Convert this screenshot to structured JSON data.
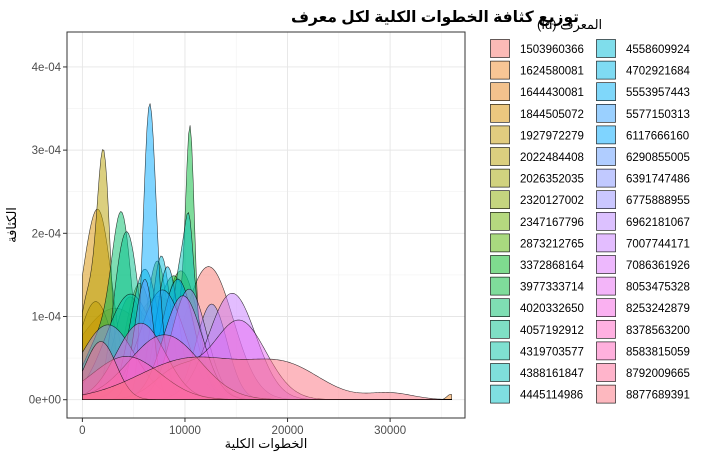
{
  "chart_data": {
    "type": "area",
    "subtype": "density",
    "title": "توزيع كثافة الخطوات الكلية لكل معرف",
    "xlabel": "الخطوات الكلية",
    "ylabel": "الكثافة",
    "xlim": [
      -1500,
      37300
    ],
    "ylim": [
      -2.2e-05,
      0.000442
    ],
    "x_ticks": [
      0,
      10000,
      20000,
      30000
    ],
    "x_tick_labels": [
      "0",
      "10000",
      "20000",
      "30000"
    ],
    "y_ticks": [
      0,
      0.0001,
      0.0002,
      0.0003,
      0.0004
    ],
    "y_tick_labels": [
      "0e+00",
      "1e-04",
      "2e-04",
      "3e-04",
      "4e-04"
    ],
    "grid": true,
    "legend_title": "المعرف (Id)",
    "legend_position": "right",
    "series": [
      {
        "name": "1503960366",
        "color": "#F8766D",
        "components": [
          [
            12300,
            2400,
            0.00016
          ]
        ]
      },
      {
        "name": "1624580081",
        "color": "#F28E2B",
        "components": [
          [
            3200,
            3800,
            0.00011
          ],
          [
            35900,
            350,
            6.5e-06
          ]
        ]
      },
      {
        "name": "1644430081",
        "color": "#E7861B",
        "components": [
          [
            7400,
            2900,
            0.000124
          ]
        ]
      },
      {
        "name": "1844505072",
        "color": "#D89000",
        "components": [
          [
            1800,
            1300,
            0.000182
          ],
          [
            200,
            1400,
            8e-05
          ]
        ]
      },
      {
        "name": "1927972279",
        "color": "#C49A00",
        "components": [
          [
            1300,
            1700,
            0.000118
          ]
        ]
      },
      {
        "name": "2022484408",
        "color": "#B79F00",
        "components": [
          [
            2100,
            650,
            0.000275
          ],
          [
            500,
            900,
            0.00012
          ]
        ]
      },
      {
        "name": "2026352035",
        "color": "#A3A500",
        "components": [
          [
            5600,
            1400,
            0.00014
          ]
        ]
      },
      {
        "name": "2320127002",
        "color": "#8CAB00",
        "components": [
          [
            4600,
            1500,
            0.000123
          ],
          [
            7300,
            900,
            6e-05
          ]
        ]
      },
      {
        "name": "2347167796",
        "color": "#6BB100",
        "components": [
          [
            9600,
            1800,
            0.000155
          ]
        ]
      },
      {
        "name": "2873212765",
        "color": "#53B400",
        "components": [
          [
            7300,
            1100,
            0.000167
          ]
        ]
      },
      {
        "name": "3372868164",
        "color": "#00B81F",
        "components": [
          [
            8900,
            1900,
            0.000149
          ]
        ]
      },
      {
        "name": "3977333714",
        "color": "#00BA38",
        "components": [
          [
            10500,
            400,
            0.000225
          ],
          [
            9900,
            1400,
            0.000115
          ]
        ]
      },
      {
        "name": "4020332650",
        "color": "#00BE67",
        "components": [
          [
            3900,
            950,
            0.000176
          ],
          [
            2100,
            1800,
            8e-05
          ]
        ]
      },
      {
        "name": "4057192912",
        "color": "#00C08B",
        "components": [
          [
            4600,
            1100,
            0.000172
          ],
          [
            3400,
            900,
            6e-05
          ]
        ]
      },
      {
        "name": "4319703577",
        "color": "#00C1A3",
        "components": [
          [
            4700,
            2400,
            0.000127
          ]
        ]
      },
      {
        "name": "4388161847",
        "color": "#00C0B8",
        "components": [
          [
            10000,
            1200,
            0.000183
          ],
          [
            10400,
            350,
            5e-05
          ]
        ]
      },
      {
        "name": "4445114986",
        "color": "#00BFC4",
        "components": [
          [
            6100,
            1400,
            0.000157
          ]
        ]
      },
      {
        "name": "4558609924",
        "color": "#00BCD8",
        "components": [
          [
            7700,
            950,
            0.000173
          ]
        ]
      },
      {
        "name": "4702921684",
        "color": "#00B8E7",
        "components": [
          [
            8300,
            1100,
            0.00016
          ]
        ]
      },
      {
        "name": "5553957443",
        "color": "#00B0F6",
        "components": [
          [
            9300,
            1600,
            0.000145
          ]
        ]
      },
      {
        "name": "5577150313",
        "color": "#35A2FF",
        "components": [
          [
            7800,
            2200,
            0.000132
          ]
        ]
      },
      {
        "name": "6117666160",
        "color": "#00A9FF",
        "components": [
          [
            6500,
            600,
            0.000288
          ],
          [
            7200,
            900,
            9e-05
          ]
        ]
      },
      {
        "name": "6290855005",
        "color": "#619CFF",
        "components": [
          [
            5800,
            900,
            0.000115
          ],
          [
            6500,
            600,
            4.5e-05
          ]
        ]
      },
      {
        "name": "6391747486",
        "color": "#8494FF",
        "components": [
          [
            12600,
            1500,
            0.000115
          ]
        ]
      },
      {
        "name": "6775888955",
        "color": "#9590FF",
        "components": [
          [
            2500,
            2600,
            9e-05
          ]
        ]
      },
      {
        "name": "6962181067",
        "color": "#B983FF",
        "components": [
          [
            10400,
            1700,
            0.000133
          ]
        ]
      },
      {
        "name": "7007744171",
        "color": "#C77CFF",
        "components": [
          [
            14600,
            2300,
            0.000128
          ]
        ]
      },
      {
        "name": "7086361926",
        "color": "#DB72FB",
        "components": [
          [
            9800,
            1900,
            0.000125
          ]
        ]
      },
      {
        "name": "8053475328",
        "color": "#E76BF3",
        "components": [
          [
            15300,
            2600,
            9.5e-05
          ],
          [
            9200,
            2200,
            3.5e-05
          ]
        ]
      },
      {
        "name": "8253242879",
        "color": "#F564E3",
        "components": [
          [
            5700,
            2400,
            9.2e-05
          ]
        ]
      },
      {
        "name": "8378563200",
        "color": "#FF61C3",
        "components": [
          [
            8000,
            3400,
            7.8e-05
          ]
        ]
      },
      {
        "name": "8583815059",
        "color": "#FF62BC",
        "components": [
          [
            4300,
            3300,
            5.2e-05
          ]
        ]
      },
      {
        "name": "8792009665",
        "color": "#FF6A98",
        "components": [
          [
            1800,
            1500,
            7e-05
          ]
        ]
      },
      {
        "name": "8877689391",
        "color": "#FC717F",
        "components": [
          [
            10800,
            5200,
            5e-05
          ],
          [
            20000,
            3500,
            3.5e-05
          ],
          [
            30000,
            2200,
            8e-06
          ]
        ]
      }
    ]
  }
}
